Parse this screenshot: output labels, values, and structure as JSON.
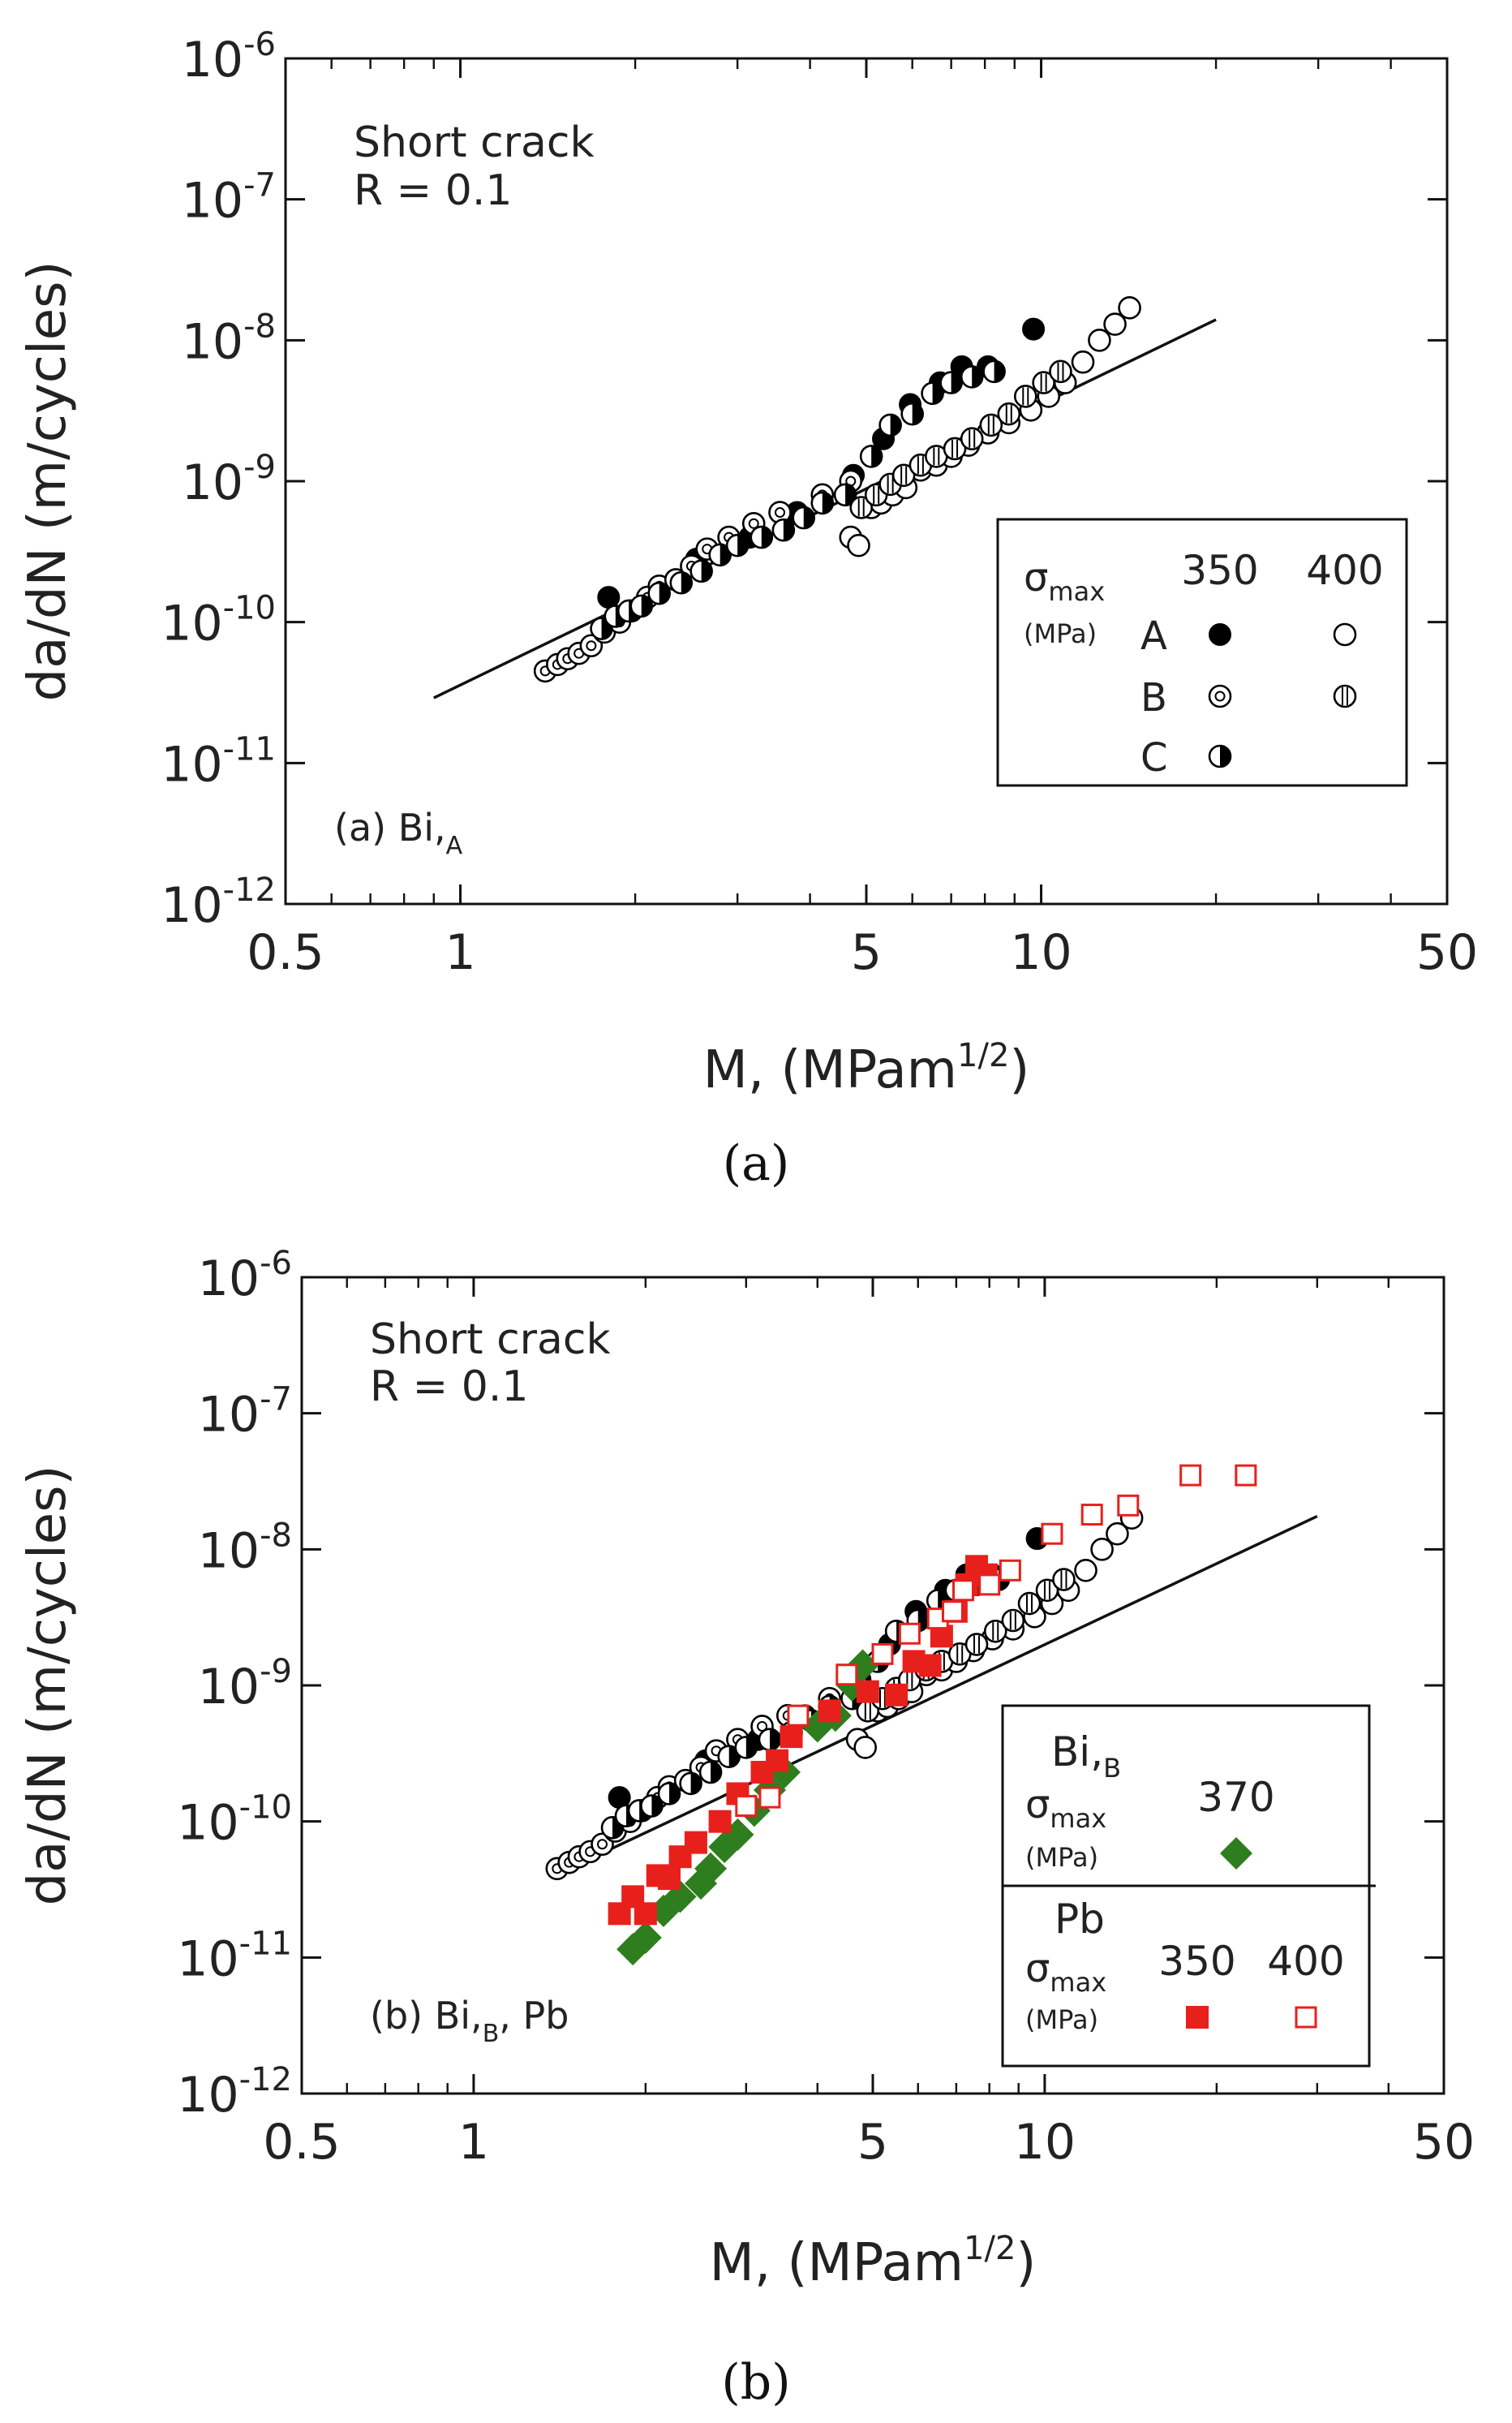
{
  "panel_captions": [
    "(a)",
    "(b)"
  ],
  "chart_data": [
    {
      "type": "scatter",
      "id": "a",
      "xscale": "log",
      "yscale": "log",
      "xlim": [
        0.5,
        50
      ],
      "ylim": [
        1e-12,
        1e-06
      ],
      "x_ticks": [
        0.5,
        1,
        5,
        10,
        50
      ],
      "x_tick_labels": [
        "0.5",
        "1",
        "5",
        "10",
        "50"
      ],
      "y_ticks": [
        1e-12,
        1e-11,
        1e-10,
        1e-09,
        1e-08,
        1e-07,
        1e-06
      ],
      "y_tick_exponents": [
        "-12",
        "-11",
        "-10",
        "-9",
        "-8",
        "-7",
        "-6"
      ],
      "ylabel": "da/dN (m/cycles)",
      "xlabel": "M,  (MPam",
      "xlabel_sup": "1/2",
      "xlabel_end": ")",
      "annotation_lines": [
        "Short crack",
        "R = 0.1"
      ],
      "panel_label": {
        "text": "(a) Bi,",
        "sub": "A"
      },
      "fit_line": {
        "x": [
          0.9,
          20
        ],
        "y": [
          2.9e-11,
          1.4e-08
        ]
      },
      "legend": {
        "position": "lower-right",
        "sigma": "σ",
        "sigma_sub": "max",
        "unit": "(MPa)",
        "col_headers": [
          "350",
          "400"
        ],
        "row_labels": [
          "A",
          "B",
          "C"
        ]
      },
      "series": [
        {
          "name": "A 350",
          "marker": "filled-circle",
          "x": [
            1.8,
            2.55,
            3.15,
            3.8,
            4.75,
            5.35,
            5.95,
            6.7,
            7.3,
            8.1,
            9.7
          ],
          "y": [
            1.5e-10,
            2.8e-10,
            4e-10,
            6e-10,
            1.1e-09,
            2e-09,
            3.5e-09,
            5e-09,
            6.5e-09,
            6.5e-09,
            1.2e-08
          ]
        },
        {
          "name": "B 350",
          "marker": "dotted-circle",
          "x": [
            1.4,
            1.47,
            1.53,
            1.6,
            1.68,
            1.77,
            1.88,
            1.97,
            2.1,
            2.2,
            2.35,
            2.5,
            2.66,
            2.9,
            3.2,
            3.55,
            4.2,
            4.7
          ],
          "y": [
            4.5e-11,
            5e-11,
            5.5e-11,
            6e-11,
            6.8e-11,
            8.5e-11,
            1e-10,
            1.2e-10,
            1.5e-10,
            1.8e-10,
            2e-10,
            2.5e-10,
            3.3e-10,
            4e-10,
            5e-10,
            6e-10,
            8e-10,
            1e-09
          ]
        },
        {
          "name": "C 350",
          "marker": "half-circle",
          "x": [
            1.75,
            1.85,
            1.95,
            2.05,
            2.2,
            2.4,
            2.6,
            2.8,
            3.0,
            3.3,
            3.6,
            3.9,
            4.2,
            4.6,
            5.1,
            5.5,
            6.0,
            6.5,
            7.0,
            7.6,
            8.3
          ],
          "y": [
            9e-11,
            1.1e-10,
            1.2e-10,
            1.3e-10,
            1.6e-10,
            1.9e-10,
            2.3e-10,
            3e-10,
            3.5e-10,
            4e-10,
            4.5e-10,
            5.5e-10,
            7e-10,
            8e-10,
            1.5e-09,
            2.5e-09,
            3e-09,
            4.2e-09,
            5e-09,
            5.5e-09,
            6e-09
          ]
        },
        {
          "name": "A 400",
          "marker": "open-circle",
          "x": [
            4.7,
            4.85,
            5.1,
            5.3,
            5.55,
            5.85,
            6.2,
            6.6,
            7.0,
            7.5,
            8.1,
            8.8,
            9.6,
            10.3,
            11.0,
            11.8,
            12.6,
            13.4,
            14.2
          ],
          "y": [
            4e-10,
            3.5e-10,
            6.5e-10,
            7e-10,
            8e-10,
            9e-10,
            1.2e-09,
            1.3e-09,
            1.5e-09,
            1.8e-09,
            2.2e-09,
            2.6e-09,
            3.2e-09,
            4e-09,
            5e-09,
            7e-09,
            1e-08,
            1.3e-08,
            1.7e-08
          ]
        },
        {
          "name": "B 400",
          "marker": "striped-circle",
          "x": [
            4.9,
            5.2,
            5.5,
            5.8,
            6.2,
            6.6,
            7.1,
            7.6,
            8.2,
            8.8,
            9.4,
            10.1,
            10.8
          ],
          "y": [
            6.5e-10,
            8e-10,
            9.5e-10,
            1.1e-09,
            1.3e-09,
            1.5e-09,
            1.7e-09,
            2e-09,
            2.5e-09,
            3e-09,
            4e-09,
            5e-09,
            6e-09
          ]
        }
      ]
    },
    {
      "type": "scatter",
      "id": "b",
      "xscale": "log",
      "yscale": "log",
      "xlim": [
        0.5,
        50
      ],
      "ylim": [
        1e-12,
        1e-06
      ],
      "x_ticks": [
        0.5,
        1,
        5,
        10,
        50
      ],
      "x_tick_labels": [
        "0.5",
        "1",
        "5",
        "10",
        "50"
      ],
      "y_ticks": [
        1e-12,
        1e-11,
        1e-10,
        1e-09,
        1e-08,
        1e-07,
        1e-06
      ],
      "y_tick_exponents": [
        "-12",
        "-11",
        "-10",
        "-9",
        "-8",
        "-7",
        "-6"
      ],
      "ylabel": "da/dN (m/cycles)",
      "xlabel": "M,  (MPam",
      "xlabel_sup": "1/2",
      "xlabel_end": ")",
      "annotation_lines": [
        "Short crack",
        "R = 0.1"
      ],
      "panel_label": {
        "text": "(b) Bi,",
        "sub": "B",
        "tail": ", Pb"
      },
      "fit_line": {
        "x": [
          1.7,
          30
        ],
        "y": [
          6e-11,
          1.75e-08
        ]
      },
      "legend": {
        "position": "lower-right",
        "sigma": "σ",
        "sigma_sub": "max",
        "unit": "(MPa)",
        "group1_title": "Bi,",
        "group1_title_sub": "B",
        "group1_header": "370",
        "group2_title": "Pb",
        "group2_headers": [
          "350",
          "400"
        ]
      },
      "series": [
        {
          "name": "A 350",
          "marker": "filled-circle",
          "x": [
            1.8,
            2.55,
            3.15,
            3.8,
            4.75,
            5.35,
            5.95,
            6.7,
            7.3,
            8.1,
            9.7
          ],
          "y": [
            1.5e-10,
            2.8e-10,
            4e-10,
            6e-10,
            1.1e-09,
            2e-09,
            3.5e-09,
            5e-09,
            6.5e-09,
            6.5e-09,
            1.2e-08
          ]
        },
        {
          "name": "B 350",
          "marker": "dotted-circle",
          "x": [
            1.4,
            1.47,
            1.53,
            1.6,
            1.68,
            1.77,
            1.88,
            1.97,
            2.1,
            2.2,
            2.35,
            2.5,
            2.66,
            2.9,
            3.2,
            3.55,
            4.2,
            4.7
          ],
          "y": [
            4.5e-11,
            5e-11,
            5.5e-11,
            6e-11,
            6.8e-11,
            8.5e-11,
            1e-10,
            1.2e-10,
            1.5e-10,
            1.8e-10,
            2e-10,
            2.5e-10,
            3.3e-10,
            4e-10,
            5e-10,
            6e-10,
            8e-10,
            1e-09
          ]
        },
        {
          "name": "C 350",
          "marker": "half-circle",
          "x": [
            1.75,
            1.85,
            1.95,
            2.05,
            2.2,
            2.4,
            2.6,
            2.8,
            3.0,
            3.3,
            3.6,
            3.9,
            4.2,
            4.6,
            5.1,
            5.5,
            6.0,
            6.5,
            7.0,
            7.6,
            8.3
          ],
          "y": [
            9e-11,
            1.1e-10,
            1.2e-10,
            1.3e-10,
            1.6e-10,
            1.9e-10,
            2.3e-10,
            3e-10,
            3.5e-10,
            4e-10,
            4.5e-10,
            5.5e-10,
            7e-10,
            8e-10,
            1.5e-09,
            2.5e-09,
            3e-09,
            4.2e-09,
            5e-09,
            5.5e-09,
            6e-09
          ]
        },
        {
          "name": "A 400",
          "marker": "open-circle",
          "x": [
            4.7,
            4.85,
            5.1,
            5.3,
            5.55,
            5.85,
            6.2,
            6.6,
            7.0,
            7.5,
            8.1,
            8.8,
            9.6,
            10.3,
            11.0,
            11.8,
            12.6,
            13.4,
            14.2
          ],
          "y": [
            4e-10,
            3.5e-10,
            6.5e-10,
            7e-10,
            8e-10,
            9e-10,
            1.2e-09,
            1.3e-09,
            1.5e-09,
            1.8e-09,
            2.2e-09,
            2.6e-09,
            3.2e-09,
            4e-09,
            5e-09,
            7e-09,
            1e-08,
            1.3e-08,
            1.7e-08
          ]
        },
        {
          "name": "B 400",
          "marker": "striped-circle",
          "x": [
            4.9,
            5.2,
            5.5,
            5.8,
            6.2,
            6.6,
            7.1,
            7.6,
            8.2,
            8.8,
            9.4,
            10.1,
            10.8
          ],
          "y": [
            6.5e-10,
            8e-10,
            9.5e-10,
            1.1e-09,
            1.3e-09,
            1.5e-09,
            1.7e-09,
            2e-09,
            2.5e-09,
            3e-09,
            4e-09,
            5e-09,
            6e-09
          ]
        },
        {
          "name": "Bi,B 370",
          "marker": "green-diamond",
          "color": "#2e7d1e",
          "x": [
            1.9,
            2.0,
            2.15,
            2.3,
            2.5,
            2.6,
            2.75,
            2.9,
            3.1,
            3.3,
            3.5,
            4.0,
            4.3,
            4.6,
            4.8
          ],
          "y": [
            1.15e-11,
            1.4e-11,
            2.2e-11,
            2.8e-11,
            3.5e-11,
            4.5e-11,
            6.5e-11,
            8e-11,
            1.2e-10,
            1.7e-10,
            2.3e-10,
            5e-10,
            6e-10,
            1e-09,
            1.4e-09
          ]
        },
        {
          "name": "Pb 350",
          "marker": "filled-square",
          "color": "#e8201c",
          "x": [
            1.8,
            1.9,
            2.0,
            2.1,
            2.2,
            2.3,
            2.45,
            2.7,
            2.9,
            3.2,
            3.4,
            3.6,
            4.2,
            4.9,
            5.5,
            5.9,
            6.3,
            6.6,
            7.0,
            7.3,
            7.6,
            7.9
          ],
          "y": [
            2.1e-11,
            2.8e-11,
            2.1e-11,
            4e-11,
            3.8e-11,
            5.5e-11,
            7e-11,
            1e-10,
            1.6e-10,
            2.3e-10,
            2.8e-10,
            4.2e-10,
            6.5e-10,
            9e-10,
            8.5e-10,
            1.5e-09,
            1.4e-09,
            2.3e-09,
            3.5e-09,
            5.5e-09,
            7.5e-09,
            6.5e-09
          ]
        },
        {
          "name": "Pb 400",
          "marker": "open-square",
          "color": "#e8201c",
          "x": [
            3.0,
            3.3,
            3.7,
            4.5,
            5.2,
            5.8,
            6.5,
            6.9,
            7.2,
            8.0,
            8.7,
            10.3,
            12.1,
            14.0,
            18.0,
            22.5
          ],
          "y": [
            1.3e-10,
            1.5e-10,
            6e-10,
            1.2e-09,
            1.7e-09,
            2.4e-09,
            3.1e-09,
            3.5e-09,
            5e-09,
            5.5e-09,
            7e-09,
            1.3e-08,
            1.8e-08,
            2.1e-08,
            3.5e-08,
            3.5e-08
          ]
        }
      ]
    }
  ]
}
